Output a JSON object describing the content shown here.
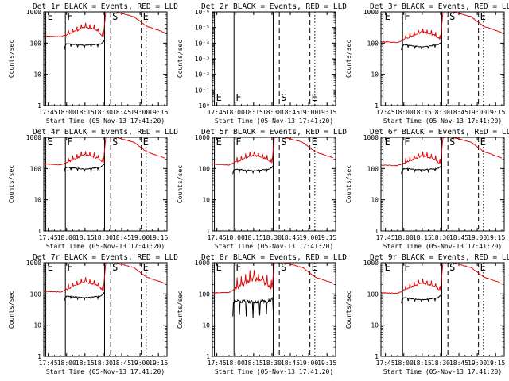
{
  "figure": {
    "colors": {
      "events": "#000000",
      "lld": "#e00000",
      "background": "#ffffff",
      "axes": "#000000"
    }
  },
  "chart_data": [
    {
      "type": "line",
      "title": "Det 1r BLACK = Events, RED = LLD",
      "ylabel": "Counts/sec",
      "xlabel": "Start Time (05-Nov-13 17:41:20)",
      "x_ticks": [
        "17:45",
        "18:00",
        "18:15",
        "18:30",
        "18:45",
        "19:00",
        "19:15"
      ],
      "y_scale": "log",
      "ylim": [
        1,
        1000
      ],
      "y_ticks": [
        "1",
        "10",
        "100",
        "1000"
      ],
      "markers": [
        {
          "label": "E",
          "time": "17:43",
          "style": "solid"
        },
        {
          "label": "F",
          "time": "17:59",
          "style": "solid"
        },
        {
          "label": "",
          "time": "18:31",
          "style": "solid"
        },
        {
          "label": "S",
          "time": "18:36",
          "style": "dashed"
        },
        {
          "label": "E",
          "time": "19:01",
          "style": "dashed"
        },
        {
          "label": "",
          "time": "19:05",
          "style": "dotted"
        }
      ],
      "profile": "normal",
      "series": [
        {
          "name": "BLACK = Events",
          "color": "#000000",
          "x": [
            "17:58",
            "18:00",
            "18:15",
            "18:28",
            "18:30",
            "18:31"
          ],
          "values": [
            70,
            95,
            85,
            95,
            110,
            130
          ]
        },
        {
          "name": "RED = LLD",
          "color": "#e00000",
          "x": [
            "17:41",
            "17:55",
            "18:05",
            "18:15",
            "18:25",
            "18:30",
            "18:32",
            "18:40",
            "18:55",
            "19:05",
            "19:20"
          ],
          "values": [
            170,
            160,
            220,
            330,
            260,
            160,
            1000,
            1000,
            700,
            350,
            220
          ]
        }
      ]
    },
    {
      "type": "line",
      "title": "Det 2r BLACK = Events, RED = LLD",
      "ylabel": "Counts/sec",
      "xlabel": "Start Time (05-Nov-13 17:41:20)",
      "x_ticks": [
        "17:45",
        "18:00",
        "18:15",
        "18:30",
        "18:45",
        "19:00",
        "19:15"
      ],
      "y_scale": "log",
      "ylim": [
        1,
        1e-06
      ],
      "y_ticks": [
        "10⁰",
        "10⁻¹",
        "10⁻²",
        "10⁻³",
        "10⁻⁴",
        "10⁻⁵",
        "10⁻⁶"
      ],
      "markers": [
        {
          "label": "E",
          "time": "17:43",
          "style": "solid"
        },
        {
          "label": "F",
          "time": "17:59",
          "style": "solid"
        },
        {
          "label": "",
          "time": "18:31",
          "style": "solid"
        },
        {
          "label": "S",
          "time": "18:36",
          "style": "dashed"
        },
        {
          "label": "E",
          "time": "19:01",
          "style": "dashed"
        },
        {
          "label": "",
          "time": "19:05",
          "style": "dotted"
        }
      ],
      "profile": "empty",
      "series": []
    },
    {
      "type": "line",
      "title": "Det 3r BLACK = Events, RED = LLD",
      "ylabel": "Counts/sec",
      "xlabel": "Start Time (05-Nov-13 17:41:20)",
      "x_ticks": [
        "17:45",
        "18:00",
        "18:15",
        "18:30",
        "18:45",
        "19:00",
        "19:15"
      ],
      "y_scale": "log",
      "ylim": [
        1,
        1000
      ],
      "y_ticks": [
        "1",
        "10",
        "100",
        "1000"
      ],
      "markers": [
        {
          "label": "E",
          "time": "17:43",
          "style": "solid"
        },
        {
          "label": "F",
          "time": "17:59",
          "style": "solid"
        },
        {
          "label": "",
          "time": "18:31",
          "style": "solid"
        },
        {
          "label": "S",
          "time": "18:36",
          "style": "dashed"
        },
        {
          "label": "E",
          "time": "19:01",
          "style": "dashed"
        },
        {
          "label": "",
          "time": "19:05",
          "style": "dotted"
        }
      ],
      "profile": "normal",
      "series": [
        {
          "name": "BLACK = Events",
          "color": "#000000",
          "x": [
            "17:58",
            "18:00",
            "18:15",
            "18:28",
            "18:30",
            "18:31"
          ],
          "values": [
            70,
            90,
            75,
            90,
            100,
            120
          ]
        },
        {
          "name": "RED = LLD",
          "color": "#e00000",
          "x": [
            "17:41",
            "17:55",
            "18:05",
            "18:15",
            "18:25",
            "18:30",
            "18:32",
            "18:40",
            "18:55",
            "19:05",
            "19:20"
          ],
          "values": [
            110,
            105,
            160,
            230,
            180,
            130,
            1000,
            1000,
            700,
            350,
            220
          ]
        }
      ]
    },
    {
      "type": "line",
      "title": "Det 4r BLACK = Events, RED = LLD",
      "ylabel": "Counts/sec",
      "xlabel": "Start Time (05-Nov-13 17:41:20)",
      "x_ticks": [
        "17:45",
        "18:00",
        "18:15",
        "18:30",
        "18:45",
        "19:00",
        "19:15"
      ],
      "y_scale": "log",
      "ylim": [
        1,
        1000
      ],
      "y_ticks": [
        "1",
        "10",
        "100",
        "1000"
      ],
      "markers": [
        {
          "label": "E",
          "time": "17:43",
          "style": "solid"
        },
        {
          "label": "F",
          "time": "17:59",
          "style": "solid"
        },
        {
          "label": "",
          "time": "18:31",
          "style": "solid"
        },
        {
          "label": "S",
          "time": "18:36",
          "style": "dashed"
        },
        {
          "label": "E",
          "time": "19:01",
          "style": "dashed"
        },
        {
          "label": "",
          "time": "19:05",
          "style": "dotted"
        }
      ],
      "profile": "normal",
      "series": [
        {
          "name": "BLACK = Events",
          "color": "#000000",
          "x": [
            "17:58",
            "18:00",
            "18:15",
            "18:28",
            "18:30",
            "18:31"
          ],
          "values": [
            90,
            110,
            95,
            110,
            130,
            150
          ]
        },
        {
          "name": "RED = LLD",
          "color": "#e00000",
          "x": [
            "17:41",
            "17:55",
            "18:05",
            "18:15",
            "18:25",
            "18:30",
            "18:32",
            "18:40",
            "18:55",
            "19:05",
            "19:20"
          ],
          "values": [
            140,
            130,
            190,
            280,
            220,
            150,
            1000,
            1000,
            700,
            350,
            220
          ]
        }
      ]
    },
    {
      "type": "line",
      "title": "Det 5r BLACK = Events, RED = LLD",
      "ylabel": "Counts/sec",
      "xlabel": "Start Time (05-Nov-13 17:41:20)",
      "x_ticks": [
        "17:45",
        "18:00",
        "18:15",
        "18:30",
        "18:45",
        "19:00",
        "19:15"
      ],
      "y_scale": "log",
      "ylim": [
        1,
        1000
      ],
      "y_ticks": [
        "1",
        "10",
        "100",
        "1000"
      ],
      "markers": [
        {
          "label": "E",
          "time": "17:43",
          "style": "solid"
        },
        {
          "label": "F",
          "time": "17:59",
          "style": "solid"
        },
        {
          "label": "",
          "time": "18:31",
          "style": "solid"
        },
        {
          "label": "S",
          "time": "18:36",
          "style": "dashed"
        },
        {
          "label": "E",
          "time": "19:01",
          "style": "dashed"
        },
        {
          "label": "",
          "time": "19:05",
          "style": "dotted"
        }
      ],
      "profile": "normal",
      "series": [
        {
          "name": "BLACK = Events",
          "color": "#000000",
          "x": [
            "17:58",
            "18:00",
            "18:15",
            "18:28",
            "18:30",
            "18:31"
          ],
          "values": [
            80,
            95,
            85,
            95,
            110,
            130
          ]
        },
        {
          "name": "RED = LLD",
          "color": "#e00000",
          "x": [
            "17:41",
            "17:55",
            "18:05",
            "18:15",
            "18:25",
            "18:30",
            "18:32",
            "18:40",
            "18:55",
            "19:05",
            "19:20"
          ],
          "values": [
            140,
            130,
            190,
            270,
            210,
            150,
            1000,
            1000,
            700,
            350,
            220
          ]
        }
      ]
    },
    {
      "type": "line",
      "title": "Det 6r BLACK = Events, RED = LLD",
      "ylabel": "Counts/sec",
      "xlabel": "Start Time (05-Nov-13 17:41:20)",
      "x_ticks": [
        "17:45",
        "18:00",
        "18:15",
        "18:30",
        "18:45",
        "19:00",
        "19:15"
      ],
      "y_scale": "log",
      "ylim": [
        1,
        1000
      ],
      "y_ticks": [
        "1",
        "10",
        "100",
        "1000"
      ],
      "markers": [
        {
          "label": "E",
          "time": "17:43",
          "style": "solid"
        },
        {
          "label": "F",
          "time": "17:59",
          "style": "solid"
        },
        {
          "label": "",
          "time": "18:31",
          "style": "solid"
        },
        {
          "label": "S",
          "time": "18:36",
          "style": "dashed"
        },
        {
          "label": "E",
          "time": "19:01",
          "style": "dashed"
        },
        {
          "label": "",
          "time": "19:05",
          "style": "dotted"
        }
      ],
      "profile": "normal",
      "series": [
        {
          "name": "BLACK = Events",
          "color": "#000000",
          "x": [
            "17:58",
            "18:00",
            "18:15",
            "18:28",
            "18:30",
            "18:31"
          ],
          "values": [
            80,
            100,
            90,
            100,
            115,
            135
          ]
        },
        {
          "name": "RED = LLD",
          "color": "#e00000",
          "x": [
            "17:41",
            "17:55",
            "18:05",
            "18:15",
            "18:25",
            "18:30",
            "18:32",
            "18:40",
            "18:55",
            "19:05",
            "19:20"
          ],
          "values": [
            130,
            125,
            180,
            260,
            200,
            140,
            1000,
            1000,
            700,
            350,
            220
          ]
        }
      ]
    },
    {
      "type": "line",
      "title": "Det 7r BLACK = Events, RED = LLD",
      "ylabel": "Counts/sec",
      "xlabel": "Start Time (05-Nov-13 17:41:20)",
      "x_ticks": [
        "17:45",
        "18:00",
        "18:15",
        "18:30",
        "18:45",
        "19:00",
        "19:15"
      ],
      "y_scale": "log",
      "ylim": [
        1,
        1000
      ],
      "y_ticks": [
        "1",
        "10",
        "100",
        "1000"
      ],
      "markers": [
        {
          "label": "E",
          "time": "17:43",
          "style": "solid"
        },
        {
          "label": "F",
          "time": "17:59",
          "style": "solid"
        },
        {
          "label": "",
          "time": "18:31",
          "style": "solid"
        },
        {
          "label": "S",
          "time": "18:36",
          "style": "dashed"
        },
        {
          "label": "E",
          "time": "19:01",
          "style": "dashed"
        },
        {
          "label": "",
          "time": "19:05",
          "style": "dotted"
        }
      ],
      "profile": "normal",
      "series": [
        {
          "name": "BLACK = Events",
          "color": "#000000",
          "x": [
            "17:58",
            "18:00",
            "18:15",
            "18:28",
            "18:30",
            "18:31"
          ],
          "values": [
            70,
            85,
            75,
            85,
            100,
            120
          ]
        },
        {
          "name": "RED = LLD",
          "color": "#e00000",
          "x": [
            "17:41",
            "17:55",
            "18:05",
            "18:15",
            "18:25",
            "18:30",
            "18:32",
            "18:40",
            "18:55",
            "19:05",
            "19:20"
          ],
          "values": [
            120,
            115,
            170,
            250,
            190,
            130,
            1000,
            1000,
            700,
            350,
            220
          ]
        }
      ]
    },
    {
      "type": "line",
      "title": "Det 8r BLACK = Events, RED = LLD",
      "ylabel": "Counts/sec",
      "xlabel": "Start Time (05-Nov-13 17:41:20)",
      "x_ticks": [
        "17:45",
        "18:00",
        "18:15",
        "18:30",
        "18:45",
        "19:00",
        "19:15"
      ],
      "y_scale": "log",
      "ylim": [
        1,
        1000
      ],
      "y_ticks": [
        "1",
        "10",
        "100",
        "1000"
      ],
      "markers": [
        {
          "label": "E",
          "time": "17:43",
          "style": "solid"
        },
        {
          "label": "F",
          "time": "17:59",
          "style": "solid"
        },
        {
          "label": "",
          "time": "18:31",
          "style": "solid"
        },
        {
          "label": "S",
          "time": "18:36",
          "style": "dashed"
        },
        {
          "label": "E",
          "time": "19:01",
          "style": "dashed"
        },
        {
          "label": "",
          "time": "19:05",
          "style": "dotted"
        }
      ],
      "profile": "noisy",
      "series": [
        {
          "name": "BLACK = Events",
          "color": "#000000",
          "x": [
            "17:58",
            "18:00",
            "18:15",
            "18:28",
            "18:30",
            "18:31"
          ],
          "values": [
            50,
            60,
            55,
            60,
            70,
            90
          ]
        },
        {
          "name": "RED = LLD",
          "color": "#e00000",
          "x": [
            "17:41",
            "17:55",
            "18:05",
            "18:15",
            "18:25",
            "18:30",
            "18:32",
            "18:40",
            "18:55",
            "19:05",
            "19:20"
          ],
          "values": [
            110,
            110,
            200,
            320,
            230,
            150,
            1000,
            1000,
            700,
            350,
            220
          ]
        }
      ]
    },
    {
      "type": "line",
      "title": "Det 9r BLACK = Events, RED = LLD",
      "ylabel": "Counts/sec",
      "xlabel": "Start Time (05-Nov-13 17:41:20)",
      "x_ticks": [
        "17:45",
        "18:00",
        "18:15",
        "18:30",
        "18:45",
        "19:00",
        "19:15"
      ],
      "y_scale": "log",
      "ylim": [
        1,
        1000
      ],
      "y_ticks": [
        "1",
        "10",
        "100",
        "1000"
      ],
      "markers": [
        {
          "label": "E",
          "time": "17:43",
          "style": "solid"
        },
        {
          "label": "F",
          "time": "17:59",
          "style": "solid"
        },
        {
          "label": "",
          "time": "18:31",
          "style": "solid"
        },
        {
          "label": "S",
          "time": "18:36",
          "style": "dashed"
        },
        {
          "label": "E",
          "time": "19:01",
          "style": "dashed"
        },
        {
          "label": "",
          "time": "19:05",
          "style": "dotted"
        }
      ],
      "profile": "normal",
      "series": [
        {
          "name": "BLACK = Events",
          "color": "#000000",
          "x": [
            "17:58",
            "18:00",
            "18:15",
            "18:28",
            "18:30",
            "18:31"
          ],
          "values": [
            60,
            75,
            65,
            75,
            90,
            110
          ]
        },
        {
          "name": "RED = LLD",
          "color": "#e00000",
          "x": [
            "17:41",
            "17:55",
            "18:05",
            "18:15",
            "18:25",
            "18:30",
            "18:32",
            "18:40",
            "18:55",
            "19:05",
            "19:20"
          ],
          "values": [
            110,
            105,
            160,
            230,
            180,
            130,
            1000,
            1000,
            700,
            350,
            220
          ]
        }
      ]
    }
  ]
}
